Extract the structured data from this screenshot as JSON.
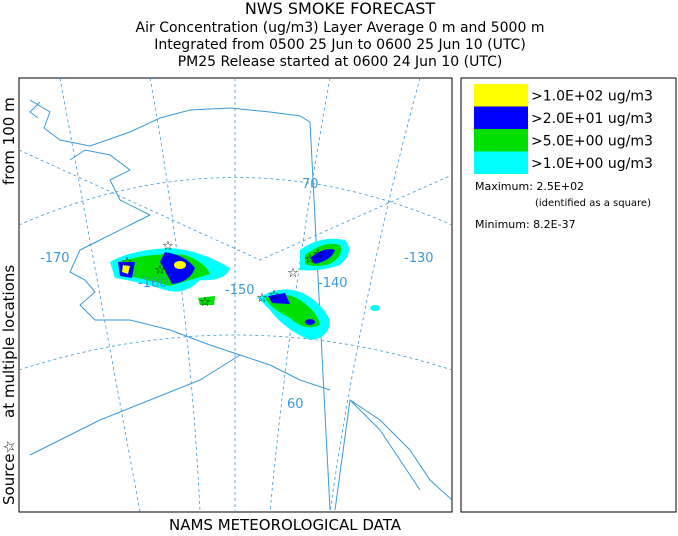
{
  "title": "NWS SMOKE FORECAST",
  "subtitle_lines": [
    "Air Concentration (ug/m3) Layer Average    0 m and  5000 m",
    "Integrated from 0500 25 Jun to 0600 25 Jun 10 (UTC)",
    "PM25 Release started at 0600 24 Jun 10 (UTC)"
  ],
  "side_label": [
    "Source☆",
    "at multiple locations",
    "from   100 m"
  ],
  "footer": "NAMS METEOROLOGICAL DATA",
  "legend": {
    "items": [
      {
        "label": ">1.0E+02 ug/m3",
        "color": "#ffff00"
      },
      {
        "label": ">2.0E+01 ug/m3",
        "color": "#0000ff"
      },
      {
        "label": ">5.0E+00 ug/m3",
        "color": "#00e000"
      },
      {
        "label": ">1.0E+00 ug/m3",
        "color": "#00ffff"
      }
    ],
    "maximum": "Maximum: 2.5E+02",
    "maximum_note": "(identified as a square)",
    "minimum": "Minimum: 8.2E-37"
  },
  "map": {
    "labels": [
      "70",
      "-170",
      "-160",
      "-150",
      "-140",
      "-130",
      "60"
    ]
  }
}
